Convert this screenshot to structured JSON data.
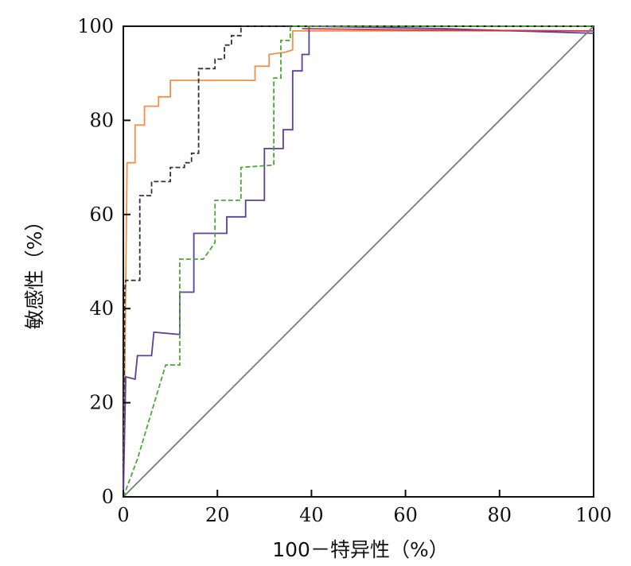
{
  "chart_data": {
    "type": "line",
    "xlabel": "100－特异性（%）",
    "ylabel": "敏感性（%）",
    "xlim": [
      0,
      100
    ],
    "ylim": [
      0,
      100
    ],
    "xticks": [
      0,
      20,
      40,
      60,
      80,
      100
    ],
    "yticks": [
      0,
      20,
      40,
      60,
      80,
      100
    ],
    "grid": false,
    "legend": "none",
    "series": [
      {
        "color": "#f2904a",
        "style": "solid",
        "points": [
          [
            0,
            0
          ],
          [
            0.5,
            45
          ],
          [
            0.8,
            71
          ],
          [
            2.5,
            71
          ],
          [
            2.5,
            79
          ],
          [
            4.5,
            79
          ],
          [
            4.5,
            83
          ],
          [
            7.5,
            83
          ],
          [
            7.5,
            85
          ],
          [
            10,
            85
          ],
          [
            10,
            88.5
          ],
          [
            28,
            88.5
          ],
          [
            28,
            91.5
          ],
          [
            31,
            91.5
          ],
          [
            31,
            94
          ],
          [
            34.5,
            94.5
          ],
          [
            36,
            95
          ],
          [
            36,
            99
          ],
          [
            38,
            99
          ],
          [
            100,
            99
          ]
        ]
      },
      {
        "color": "#333333",
        "style": "dashed",
        "points": [
          [
            0,
            0
          ],
          [
            0.3,
            44
          ],
          [
            0.5,
            46
          ],
          [
            3.5,
            46
          ],
          [
            3.5,
            64
          ],
          [
            6,
            64
          ],
          [
            6,
            67
          ],
          [
            10,
            67
          ],
          [
            10,
            70
          ],
          [
            13,
            70
          ],
          [
            13,
            71
          ],
          [
            14.5,
            71
          ],
          [
            14.5,
            73
          ],
          [
            16,
            73
          ],
          [
            16,
            91
          ],
          [
            19.5,
            91
          ],
          [
            19.5,
            93
          ],
          [
            21.5,
            93
          ],
          [
            21.5,
            96
          ],
          [
            23,
            96
          ],
          [
            23,
            98
          ],
          [
            25,
            98
          ],
          [
            25,
            100
          ],
          [
            100,
            100
          ]
        ]
      },
      {
        "color": "#5c3f99",
        "style": "solid",
        "points": [
          [
            0,
            0
          ],
          [
            0.5,
            25.5
          ],
          [
            2.5,
            25
          ],
          [
            3,
            30
          ],
          [
            6,
            30
          ],
          [
            6.5,
            35
          ],
          [
            12,
            34.5
          ],
          [
            12,
            43.5
          ],
          [
            15,
            43.5
          ],
          [
            15,
            56
          ],
          [
            22,
            56
          ],
          [
            22,
            59.5
          ],
          [
            26,
            59.5
          ],
          [
            26,
            63
          ],
          [
            30,
            63
          ],
          [
            30,
            74
          ],
          [
            34,
            74
          ],
          [
            34,
            78
          ],
          [
            36,
            78
          ],
          [
            36,
            90.5
          ],
          [
            38,
            90.5
          ],
          [
            38,
            94
          ],
          [
            39.5,
            94
          ],
          [
            39.5,
            100
          ],
          [
            68,
            99.5
          ],
          [
            100,
            98.5
          ]
        ]
      },
      {
        "color": "#d93344",
        "style": "solid",
        "points": [
          [
            38,
            99.5
          ],
          [
            60,
            99.2
          ],
          [
            100,
            99
          ]
        ]
      },
      {
        "color": "#49a832",
        "style": "dashed",
        "points": [
          [
            0,
            0
          ],
          [
            3,
            8
          ],
          [
            9,
            28
          ],
          [
            12,
            28
          ],
          [
            12,
            50.5
          ],
          [
            17,
            50.5
          ],
          [
            19.5,
            54
          ],
          [
            19.5,
            63
          ],
          [
            25,
            63
          ],
          [
            25,
            70
          ],
          [
            32,
            70.5
          ],
          [
            32,
            89
          ],
          [
            33.5,
            89
          ],
          [
            33.5,
            97
          ],
          [
            35.5,
            97
          ],
          [
            35.5,
            100
          ],
          [
            100,
            100
          ]
        ]
      },
      {
        "color": "#7a7a7a",
        "style": "solid",
        "points": [
          [
            0,
            0
          ],
          [
            100,
            100
          ]
        ]
      }
    ]
  }
}
